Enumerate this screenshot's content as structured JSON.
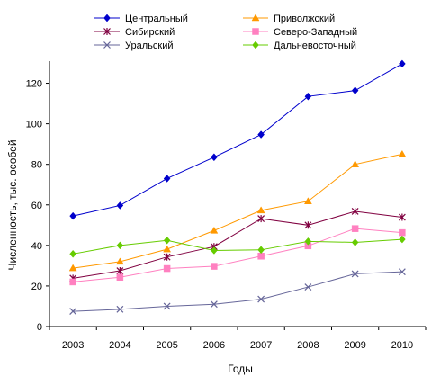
{
  "chart_data": {
    "type": "line",
    "title": "",
    "xlabel": "Годы",
    "ylabel": "Численность, тыс. особей",
    "x": [
      "2003",
      "2004",
      "2005",
      "2006",
      "2007",
      "2008",
      "2009",
      "2010"
    ],
    "ylim": [
      0,
      130
    ],
    "yticks": [
      0,
      20,
      40,
      60,
      80,
      100,
      120
    ],
    "grid": false,
    "legend_position": "top",
    "series": [
      {
        "name": "Центральный",
        "color": "#0000cc",
        "marker": "diamond",
        "values": [
          54.5,
          59.7,
          73.0,
          83.5,
          94.7,
          113.5,
          116.4,
          129.6
        ]
      },
      {
        "name": "Приволжский",
        "color": "#ff9900",
        "marker": "triangle",
        "values": [
          28.8,
          32.0,
          38.1,
          47.3,
          57.3,
          61.8,
          80.0,
          85.0
        ]
      },
      {
        "name": "Сибирский",
        "color": "#800040",
        "marker": "star",
        "values": [
          23.8,
          27.5,
          34.3,
          39.4,
          53.2,
          50.0,
          56.8,
          53.9
        ]
      },
      {
        "name": "Северо-Западный",
        "color": "#ff80c0",
        "marker": "square",
        "values": [
          22.0,
          24.3,
          28.6,
          29.7,
          34.7,
          39.8,
          48.3,
          46.3
        ]
      },
      {
        "name": "Уральский",
        "color": "#666699",
        "marker": "x",
        "values": [
          7.5,
          8.5,
          10.0,
          11.0,
          13.5,
          19.5,
          26.0,
          27.0
        ]
      },
      {
        "name": "Дальневосточный",
        "color": "#66cc00",
        "marker": "diamond",
        "values": [
          35.8,
          40.0,
          42.5,
          37.5,
          37.8,
          42.0,
          41.5,
          43.0
        ]
      }
    ]
  }
}
